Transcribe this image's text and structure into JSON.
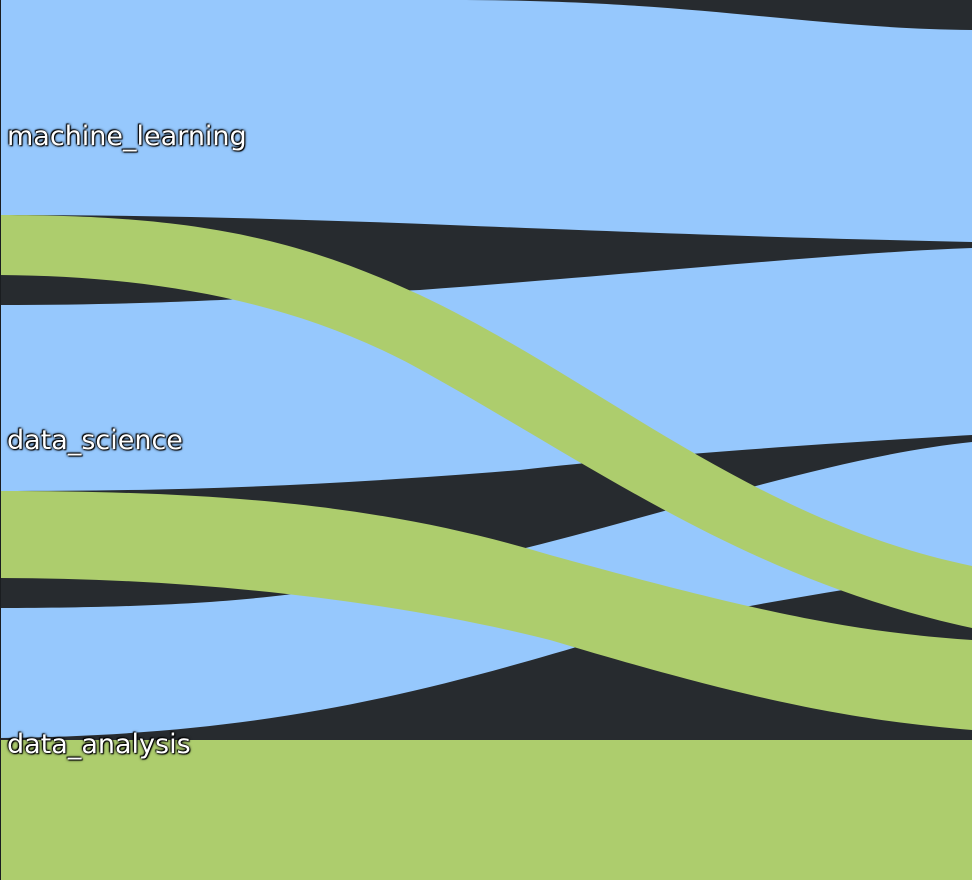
{
  "colors": {
    "background": "#272b2f",
    "category_a": "#96c8fd",
    "category_b": "#adcd6d"
  },
  "nodes": [
    {
      "id": "machine_learning",
      "label": "machine_learning"
    },
    {
      "id": "data_science",
      "label": "data_science"
    },
    {
      "id": "data_analysis",
      "label": "data_analysis"
    }
  ]
}
